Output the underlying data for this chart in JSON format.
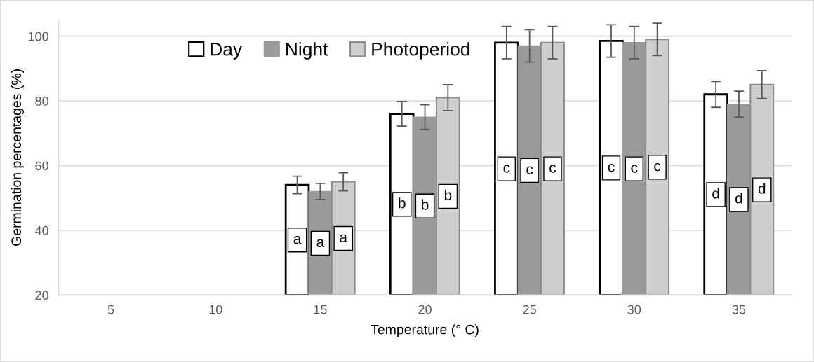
{
  "chart_data": {
    "type": "bar",
    "xlabel": "Temperature (° C)",
    "ylabel": "Germination percentages (%)",
    "categories": [
      "5",
      "10",
      "15",
      "20",
      "25",
      "30",
      "35"
    ],
    "series": [
      {
        "name": "Day",
        "color": "#ffffff",
        "values": [
          20,
          20,
          54,
          76,
          98,
          98.5,
          82
        ],
        "errors": [
          null,
          null,
          2.7,
          3.8,
          5,
          5,
          4
        ]
      },
      {
        "name": "Night",
        "color": "#9a9a9a",
        "values": [
          20,
          20,
          52,
          75,
          97,
          98,
          79
        ],
        "errors": [
          null,
          null,
          2.5,
          3.8,
          5,
          5,
          4
        ]
      },
      {
        "name": "Photoperiod",
        "color": "#d0cfd0",
        "values": [
          20,
          20,
          55,
          81,
          98,
          99,
          85
        ],
        "errors": [
          null,
          null,
          2.8,
          4,
          5,
          5,
          4.3
        ]
      }
    ],
    "ylim": [
      20,
      105
    ],
    "yticks": [
      20,
      40,
      60,
      80,
      100
    ],
    "grid": "y",
    "legend": "top",
    "annotations": [
      "a",
      "a",
      "a",
      "b",
      "b",
      "b",
      "c",
      "c",
      "c",
      "c",
      "c",
      "c",
      "d",
      "d",
      "d"
    ]
  }
}
